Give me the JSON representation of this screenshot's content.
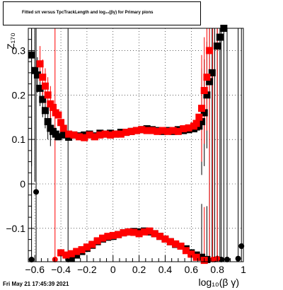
{
  "chart_data": {
    "type": "scatter",
    "title": "Fitted s_{π}, versus TpcTrackLength and log_{10}(βγ) for Primary pions",
    "title_display": "Fitted sπ versus TpcTrackLength and log₁₀(βγ) for Primary pions",
    "xlabel": "log₁₀(β γ)",
    "ylabel": "Z₁₇₀",
    "xlim": [
      -0.65,
      1.0
    ],
    "ylim": [
      -0.175,
      0.35
    ],
    "x_ticks": [
      "-0.6",
      "-0.4",
      "-0.2",
      "0",
      "0.2",
      "0.4",
      "0.6",
      "0.8",
      "1"
    ],
    "y_ticks": [
      "-0.1",
      "0",
      "0.1",
      "0.2",
      "0.3"
    ],
    "grid": true,
    "series": [
      {
        "color": "#000000",
        "marker": "square",
        "upper": [
          [
            -0.625,
            0.29
          ],
          [
            -0.6,
            0.255
          ],
          [
            -0.58,
            0.245
          ],
          [
            -0.56,
            0.215
          ],
          [
            -0.54,
            0.19
          ],
          [
            -0.52,
            0.165
          ],
          [
            -0.5,
            0.14
          ],
          [
            -0.48,
            0.125
          ],
          [
            -0.46,
            0.118
          ],
          [
            -0.44,
            0.112
          ],
          [
            -0.42,
            0.106
          ],
          [
            -0.38,
            0.11
          ],
          [
            -0.34,
            0.105
          ],
          [
            -0.3,
            0.11
          ],
          [
            -0.26,
            0.108
          ],
          [
            -0.22,
            0.11
          ],
          [
            -0.18,
            0.112
          ],
          [
            -0.14,
            0.108
          ],
          [
            -0.1,
            0.114
          ],
          [
            -0.06,
            0.112
          ],
          [
            -0.02,
            0.114
          ],
          [
            0.02,
            0.112
          ],
          [
            0.06,
            0.116
          ],
          [
            0.1,
            0.116
          ],
          [
            0.14,
            0.118
          ],
          [
            0.18,
            0.12
          ],
          [
            0.22,
            0.122
          ],
          [
            0.26,
            0.124
          ],
          [
            0.3,
            0.122
          ],
          [
            0.34,
            0.12
          ],
          [
            0.38,
            0.118
          ],
          [
            0.42,
            0.12
          ],
          [
            0.46,
            0.118
          ],
          [
            0.5,
            0.122
          ],
          [
            0.54,
            0.12
          ],
          [
            0.58,
            0.122
          ],
          [
            0.62,
            0.124
          ],
          [
            0.64,
            0.128
          ],
          [
            0.66,
            0.13
          ],
          [
            0.68,
            0.14
          ],
          [
            0.7,
            0.16
          ],
          [
            0.72,
            0.2
          ],
          [
            0.74,
            0.23
          ],
          [
            0.76,
            0.25
          ],
          [
            0.8,
            0.31
          ],
          [
            0.82,
            0.33
          ],
          [
            0.85,
            0.35
          ]
        ],
        "lower": [
          [
            -0.32,
            -0.168
          ],
          [
            -0.28,
            -0.16
          ],
          [
            -0.24,
            -0.152
          ],
          [
            -0.2,
            -0.145
          ],
          [
            -0.16,
            -0.138
          ],
          [
            -0.12,
            -0.13
          ],
          [
            -0.08,
            -0.124
          ],
          [
            -0.04,
            -0.12
          ],
          [
            0.0,
            -0.118
          ],
          [
            0.04,
            -0.114
          ],
          [
            0.08,
            -0.11
          ],
          [
            0.12,
            -0.108
          ],
          [
            0.16,
            -0.107
          ],
          [
            0.2,
            -0.108
          ],
          [
            0.24,
            -0.106
          ],
          [
            0.28,
            -0.108
          ],
          [
            0.32,
            -0.112
          ],
          [
            0.36,
            -0.118
          ],
          [
            0.4,
            -0.124
          ],
          [
            0.44,
            -0.13
          ],
          [
            0.48,
            -0.136
          ],
          [
            0.52,
            -0.14
          ],
          [
            0.56,
            -0.146
          ],
          [
            0.6,
            -0.155
          ],
          [
            0.64,
            -0.16
          ],
          [
            0.68,
            -0.165
          ],
          [
            0.72,
            -0.17
          ]
        ],
        "points": [
          [
            -0.59,
            -0.018
          ],
          [
            -0.625,
            -0.175
          ],
          [
            -0.345,
            -0.17
          ],
          [
            0.78,
            -0.17
          ],
          [
            0.83,
            -0.17
          ],
          [
            0.875,
            -0.17
          ],
          [
            0.96,
            -0.168
          ],
          [
            0.985,
            -0.14
          ]
        ]
      },
      {
        "color": "#ff0000",
        "marker": "square",
        "upper": [
          [
            -0.56,
            0.27
          ],
          [
            -0.54,
            0.24
          ],
          [
            -0.52,
            0.22
          ],
          [
            -0.5,
            0.2
          ],
          [
            -0.48,
            0.18
          ],
          [
            -0.46,
            0.172
          ],
          [
            -0.44,
            0.16
          ],
          [
            -0.42,
            0.155
          ],
          [
            -0.4,
            0.138
          ],
          [
            -0.38,
            0.125
          ],
          [
            -0.34,
            0.112
          ],
          [
            -0.3,
            0.11
          ],
          [
            -0.26,
            0.106
          ],
          [
            -0.22,
            0.104
          ],
          [
            -0.18,
            0.11
          ],
          [
            -0.14,
            0.106
          ],
          [
            -0.1,
            0.11
          ],
          [
            -0.06,
            0.112
          ],
          [
            -0.02,
            0.11
          ],
          [
            0.02,
            0.112
          ],
          [
            0.06,
            0.112
          ],
          [
            0.1,
            0.116
          ],
          [
            0.14,
            0.118
          ],
          [
            0.18,
            0.12
          ],
          [
            0.22,
            0.122
          ],
          [
            0.26,
            0.12
          ],
          [
            0.3,
            0.12
          ],
          [
            0.34,
            0.118
          ],
          [
            0.38,
            0.12
          ],
          [
            0.42,
            0.118
          ],
          [
            0.46,
            0.12
          ],
          [
            0.5,
            0.118
          ],
          [
            0.54,
            0.124
          ],
          [
            0.58,
            0.126
          ],
          [
            0.62,
            0.13
          ],
          [
            0.64,
            0.136
          ],
          [
            0.66,
            0.15
          ],
          [
            0.68,
            0.17
          ],
          [
            0.7,
            0.21
          ],
          [
            0.72,
            0.24
          ],
          [
            0.74,
            0.3
          ]
        ],
        "lower": [
          [
            -0.4,
            -0.155
          ],
          [
            -0.36,
            -0.16
          ],
          [
            -0.32,
            -0.157
          ],
          [
            -0.28,
            -0.152
          ],
          [
            -0.24,
            -0.148
          ],
          [
            -0.2,
            -0.142
          ],
          [
            -0.16,
            -0.136
          ],
          [
            -0.12,
            -0.128
          ],
          [
            -0.08,
            -0.122
          ],
          [
            -0.04,
            -0.118
          ],
          [
            0.0,
            -0.116
          ],
          [
            0.04,
            -0.114
          ],
          [
            0.08,
            -0.11
          ],
          [
            0.12,
            -0.108
          ],
          [
            0.16,
            -0.109
          ],
          [
            0.2,
            -0.112
          ],
          [
            0.24,
            -0.108
          ],
          [
            0.28,
            -0.106
          ],
          [
            0.32,
            -0.112
          ],
          [
            0.36,
            -0.118
          ],
          [
            0.4,
            -0.124
          ],
          [
            0.44,
            -0.13
          ],
          [
            0.48,
            -0.135
          ],
          [
            0.52,
            -0.14
          ],
          [
            0.56,
            -0.15
          ],
          [
            0.6,
            -0.158
          ],
          [
            0.64,
            -0.165
          ],
          [
            0.7,
            -0.172
          ]
        ],
        "points": [
          [
            -0.445,
            -0.17
          ],
          [
            0.765,
            -0.17
          ],
          [
            0.8,
            -0.168
          ]
        ]
      }
    ]
  },
  "footer": {
    "timestamp": "Fri May 21 17:45:39 2021"
  }
}
